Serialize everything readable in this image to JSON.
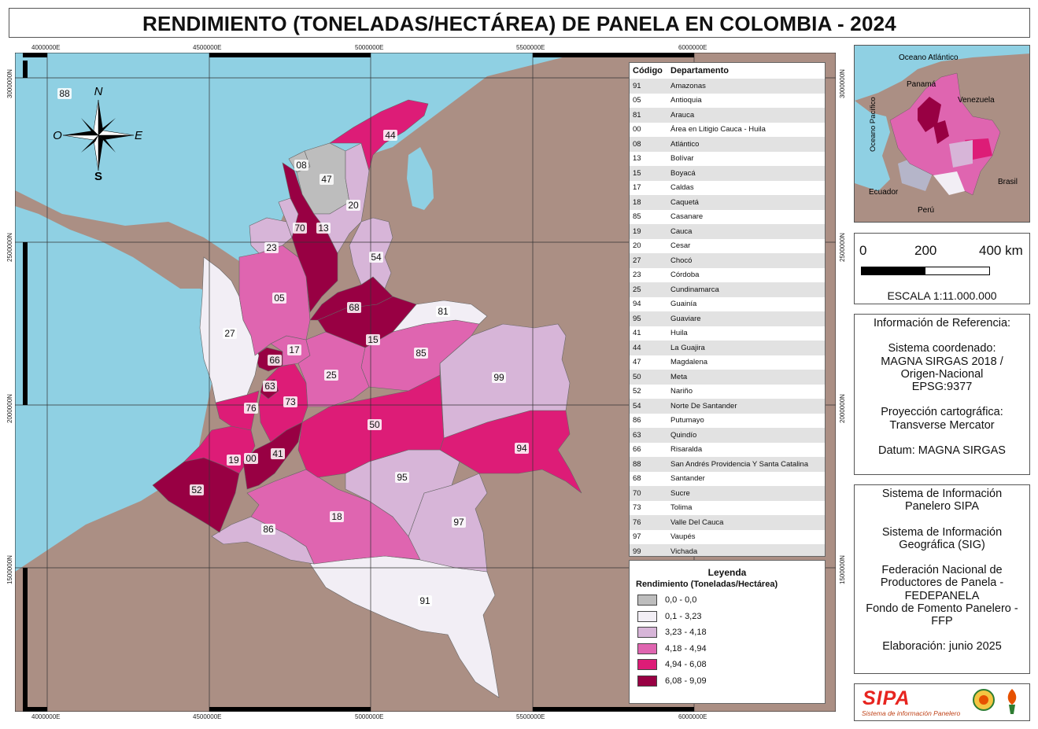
{
  "title": "RENDIMIENTO (TONELADAS/HECTÁREA) DE PANELA EN COLOMBIA - 2024",
  "grid_x_labels": [
    "4000000E",
    "4500000E",
    "5000000E",
    "5500000E",
    "6000000E"
  ],
  "grid_y_labels": [
    "3000000N",
    "2500000N",
    "2000000N",
    "1500000N"
  ],
  "compass": {
    "n": "N",
    "s": "S",
    "e": "E",
    "o": "O"
  },
  "table": {
    "header_code": "Código",
    "header_name": "Departamento",
    "rows": [
      {
        "code": "91",
        "name": "Amazonas"
      },
      {
        "code": "05",
        "name": "Antioquia"
      },
      {
        "code": "81",
        "name": "Arauca"
      },
      {
        "code": "00",
        "name": "Área en Litigio Cauca - Huila"
      },
      {
        "code": "08",
        "name": "Atlántico"
      },
      {
        "code": "13",
        "name": "Bolívar"
      },
      {
        "code": "15",
        "name": "Boyacá"
      },
      {
        "code": "17",
        "name": "Caldas"
      },
      {
        "code": "18",
        "name": "Caquetá"
      },
      {
        "code": "85",
        "name": "Casanare"
      },
      {
        "code": "19",
        "name": "Cauca"
      },
      {
        "code": "20",
        "name": "Cesar"
      },
      {
        "code": "27",
        "name": "Chocó"
      },
      {
        "code": "23",
        "name": "Córdoba"
      },
      {
        "code": "25",
        "name": "Cundinamarca"
      },
      {
        "code": "94",
        "name": "Guainía"
      },
      {
        "code": "95",
        "name": "Guaviare"
      },
      {
        "code": "41",
        "name": "Huila"
      },
      {
        "code": "44",
        "name": "La Guajira"
      },
      {
        "code": "47",
        "name": "Magdalena"
      },
      {
        "code": "50",
        "name": "Meta"
      },
      {
        "code": "52",
        "name": "Nariño"
      },
      {
        "code": "54",
        "name": "Norte De Santander"
      },
      {
        "code": "86",
        "name": "Putumayo"
      },
      {
        "code": "63",
        "name": "Quindío"
      },
      {
        "code": "66",
        "name": "Risaralda"
      },
      {
        "code": "88",
        "name": "San Andrés Providencia Y Santa Catalina"
      },
      {
        "code": "68",
        "name": "Santander"
      },
      {
        "code": "70",
        "name": "Sucre"
      },
      {
        "code": "73",
        "name": "Tolima"
      },
      {
        "code": "76",
        "name": "Valle Del Cauca"
      },
      {
        "code": "97",
        "name": "Vaupés"
      },
      {
        "code": "99",
        "name": "Vichada"
      }
    ]
  },
  "legend": {
    "title": "Leyenda",
    "subtitle": "Rendimiento (Toneladas/Hectárea)",
    "classes": [
      {
        "label": "0,0 - 0,0",
        "color": "#bdbdbd"
      },
      {
        "label": "0,1 - 3,23",
        "color": "#f2eef5"
      },
      {
        "label": "3,23 - 4,18",
        "color": "#d7b5d8"
      },
      {
        "label": "4,18 - 4,94",
        "color": "#df65b0"
      },
      {
        "label": "4,94 - 6,08",
        "color": "#dd1c77"
      },
      {
        "label": "6,08 - 9,09",
        "color": "#980043"
      }
    ]
  },
  "map_labels": [
    "88",
    "08",
    "47",
    "44",
    "20",
    "70",
    "13",
    "23",
    "54",
    "05",
    "68",
    "81",
    "27",
    "15",
    "17",
    "66",
    "85",
    "25",
    "99",
    "63",
    "76",
    "73",
    "50",
    "41",
    "19",
    "00",
    "94",
    "52",
    "95",
    "18",
    "97",
    "86",
    "91"
  ],
  "inset": {
    "atlantic": "Oceano Atlántico",
    "pacific": "Oceano Pacífico",
    "panama": "Panamá",
    "venezuela": "Venezuela",
    "brasil": "Brasil",
    "ecuador": "Ecuador",
    "peru": "Perú"
  },
  "scale": {
    "l0": "0",
    "l1": "200",
    "l2": "400 km",
    "text": "ESCALA 1:11.000.000"
  },
  "reference": "Información de Referencia:\n\nSistema coordenado:\nMAGNA SIRGAS 2018 /\nOrigen-Nacional\nEPSG:9377\n\nProyección cartográfica:\nTransverse Mercator\n\nDatum: MAGNA SIRGAS",
  "credits": "Sistema de Información\nPanelero SIPA\n\nSistema de Información\nGeográfica (SIG)\n\nFederación Nacional de\nProductores de Panela -\nFEDEPANELA\nFondo de Fomento Panelero -\nFFP\n\nElaboración: junio 2025",
  "logo": {
    "name": "SIPA",
    "subtitle": "Sistema de información Panelero"
  },
  "colors": {
    "sea": "#8fd0e3",
    "land": "#ab8f84",
    "c0": "#bdbdbd",
    "c1": "#f2eef5",
    "c2": "#d7b5d8",
    "c3": "#df65b0",
    "c4": "#dd1c77",
    "c5": "#980043"
  }
}
